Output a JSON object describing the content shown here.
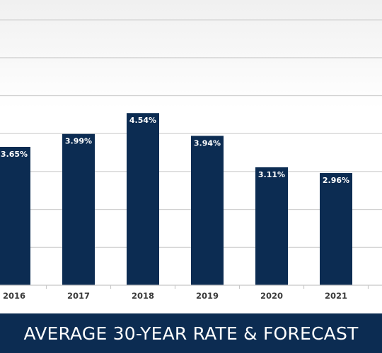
{
  "chart_data": {
    "type": "bar",
    "title": "AVERAGE 30-YEAR RATE & FORECAST",
    "categories": [
      "2016",
      "2017",
      "2018",
      "2019",
      "2020",
      "2021"
    ],
    "values": [
      3.65,
      3.99,
      4.54,
      3.94,
      3.11,
      2.96
    ],
    "data_labels": [
      "3.65%",
      "3.99%",
      "4.54%",
      "3.94%",
      "3.11%",
      "2.96%"
    ],
    "xlabel": "",
    "ylabel": "",
    "ylim": [
      0,
      7
    ],
    "grid": true,
    "bar_color": "#0c2c52",
    "grid_color": "#cfcfcf",
    "banner_color": "#0c2c52"
  }
}
